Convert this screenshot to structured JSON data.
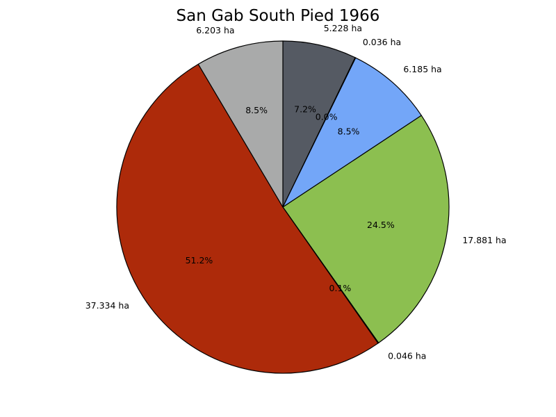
{
  "chart_data": {
    "type": "pie",
    "title": "San Gab South Pied 1966",
    "slices": [
      {
        "value": 5.228,
        "label": "5.228 ha",
        "pct": "7.2%",
        "color": "#555a63"
      },
      {
        "value": 0.036,
        "label": "0.036 ha",
        "pct": "0.0%",
        "color": "#2b2b2b"
      },
      {
        "value": 6.185,
        "label": "6.185 ha",
        "pct": "8.5%",
        "color": "#73a6f8"
      },
      {
        "value": 17.881,
        "label": "17.881 ha",
        "pct": "24.5%",
        "color": "#8cbf50"
      },
      {
        "value": 0.046,
        "label": "0.046 ha",
        "pct": "0.1%",
        "color": "#1f3f7a"
      },
      {
        "value": 37.334,
        "label": "37.334 ha",
        "pct": "51.2%",
        "color": "#ad2a0a"
      },
      {
        "value": 6.203,
        "label": "6.203 ha",
        "pct": "8.5%",
        "color": "#a9aaaa"
      }
    ],
    "start_angle": "top",
    "direction": "clockwise",
    "legend": "none"
  }
}
